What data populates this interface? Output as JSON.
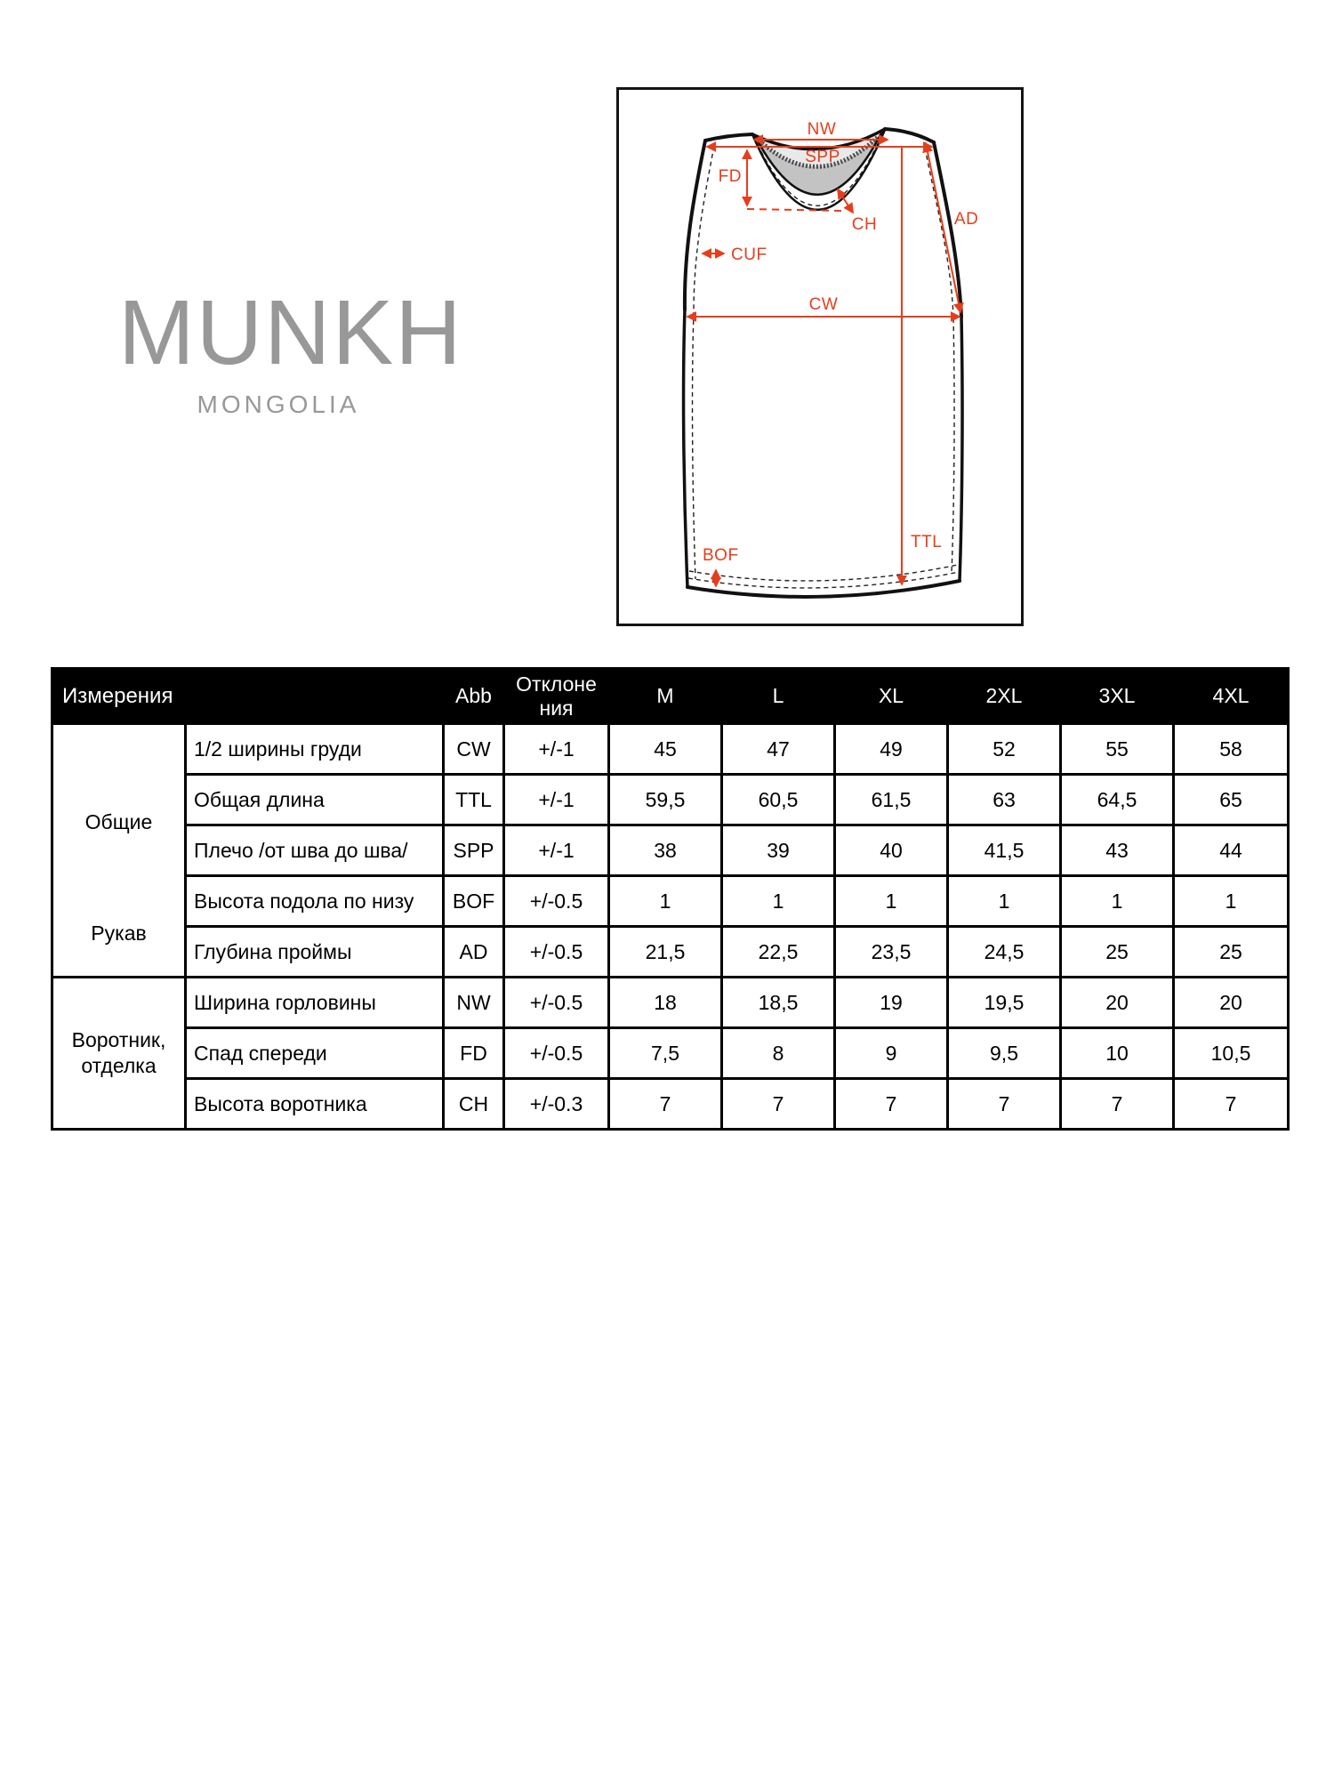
{
  "brand": {
    "name": "MUNKH",
    "subtitle": "MONGOLIA"
  },
  "diagram": {
    "annotation_color": "#e63e1c",
    "labels": {
      "nw": "NW",
      "spp": "SPP",
      "fd": "FD",
      "ch": "CH",
      "cuf": "CUF",
      "cw": "CW",
      "ad": "AD",
      "ttl": "TTL",
      "bof": "BOF"
    }
  },
  "table": {
    "header": {
      "measurements": "Измерения",
      "abb": "Abb",
      "deviation": "Отклоне ния",
      "sizes": [
        "M",
        "L",
        "XL",
        "2XL",
        "3XL",
        "4XL"
      ]
    },
    "groups": [
      {
        "label_top": "Общие",
        "label_bottom": "Рукав",
        "rowspan": 5
      },
      {
        "label": "Воротник, отделка",
        "rowspan": 3
      }
    ],
    "rows": [
      {
        "name": "1/2 ширины груди",
        "abb": "CW",
        "dev": "+/-1",
        "values": [
          "45",
          "47",
          "49",
          "52",
          "55",
          "58"
        ]
      },
      {
        "name": "Общая длина",
        "abb": "TTL",
        "dev": "+/-1",
        "values": [
          "59,5",
          "60,5",
          "61,5",
          "63",
          "64,5",
          "65"
        ]
      },
      {
        "name": "Плечо /от шва до шва/",
        "abb": "SPP",
        "dev": "+/-1",
        "values": [
          "38",
          "39",
          "40",
          "41,5",
          "43",
          "44"
        ]
      },
      {
        "name": "Высота подола по низу",
        "abb": "BOF",
        "dev": "+/-0.5",
        "values": [
          "1",
          "1",
          "1",
          "1",
          "1",
          "1"
        ]
      },
      {
        "name": "Глубина проймы",
        "abb": "AD",
        "dev": "+/-0.5",
        "values": [
          "21,5",
          "22,5",
          "23,5",
          "24,5",
          "25",
          "25"
        ]
      },
      {
        "name": "Ширина горловины",
        "abb": "NW",
        "dev": "+/-0.5",
        "values": [
          "18",
          "18,5",
          "19",
          "19,5",
          "20",
          "20"
        ]
      },
      {
        "name": "Спад спереди",
        "abb": "FD",
        "dev": "+/-0.5",
        "values": [
          "7,5",
          "8",
          "9",
          "9,5",
          "10",
          "10,5"
        ]
      },
      {
        "name": "Высота воротника",
        "abb": "CH",
        "dev": "+/-0.3",
        "values": [
          "7",
          "7",
          "7",
          "7",
          "7",
          "7"
        ]
      }
    ]
  }
}
